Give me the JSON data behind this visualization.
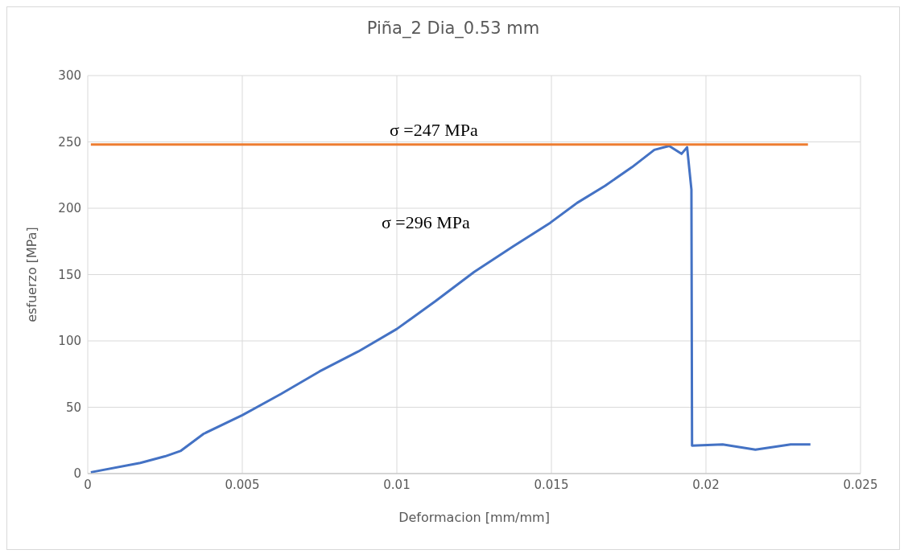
{
  "chart_data": {
    "type": "line",
    "title": "Piña_2 Dia_0.53 mm",
    "xlabel": "Deformacion [mm/mm]",
    "ylabel": "esfuerzo [MPa]",
    "xlim": [
      0,
      0.025
    ],
    "xticks": [
      0,
      0.005,
      0.01,
      0.015,
      0.02,
      0.025
    ],
    "ylim": [
      0,
      300
    ],
    "yticks": [
      0,
      50,
      100,
      150,
      200,
      250,
      300
    ],
    "grid": true,
    "marker": "none",
    "line_style": "solid",
    "series": [
      {
        "color": "#4472c4",
        "x": [
          0.0001,
          0.0017,
          0.0025,
          0.003,
          0.00375,
          0.005,
          0.00625,
          0.0075,
          0.00875,
          0.01,
          0.01125,
          0.0125,
          0.01375,
          0.01496,
          0.01583,
          0.01674,
          0.01761,
          0.01833,
          0.01881,
          0.01921,
          0.01939,
          0.01953,
          0.01955,
          0.02054,
          0.0216,
          0.02274,
          0.02338
        ],
        "values": [
          1,
          8,
          13,
          17,
          30,
          44,
          60,
          77,
          92,
          109,
          130,
          152,
          171,
          189,
          204,
          217,
          231,
          244,
          247,
          241,
          246,
          214,
          21,
          22,
          18,
          22,
          22
        ]
      },
      {
        "color": "#ed7d31",
        "x": [
          0.0001,
          0.0233
        ],
        "values": [
          248,
          248
        ]
      }
    ],
    "annotations": [
      "σ =247 MPa",
      "σ =296 MPa"
    ]
  }
}
